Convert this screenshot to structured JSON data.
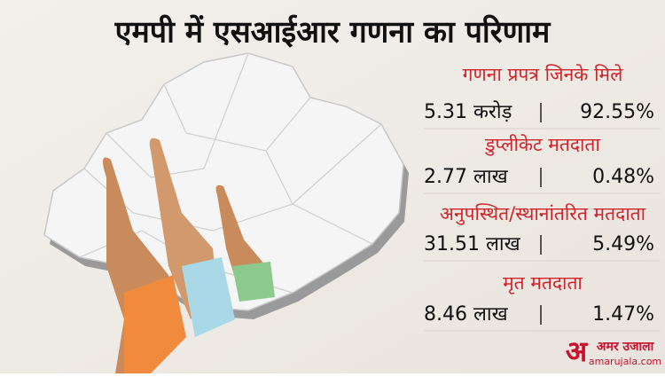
{
  "header": {
    "title": "एमपी में एसआईआर गणना का परिणाम"
  },
  "stats": [
    {
      "label": "गणना प्रपत्र जिनके मिले",
      "count": "5.31 करोड़",
      "percent": "92.55%"
    },
    {
      "label": "डुप्लीकेट मतदाता",
      "count": "2.77 लाख",
      "percent": "0.48%"
    },
    {
      "label": "अनुपस्थित/स्थानांतरित मतदाता",
      "count": "31.51 लाख",
      "percent": "5.49%"
    },
    {
      "label": "मृत मतदाता",
      "count": "8.46 लाख",
      "percent": "1.47%"
    }
  ],
  "logo": {
    "mark": "अ",
    "name": "अमर उजाला",
    "site": "amarujala.com"
  }
}
